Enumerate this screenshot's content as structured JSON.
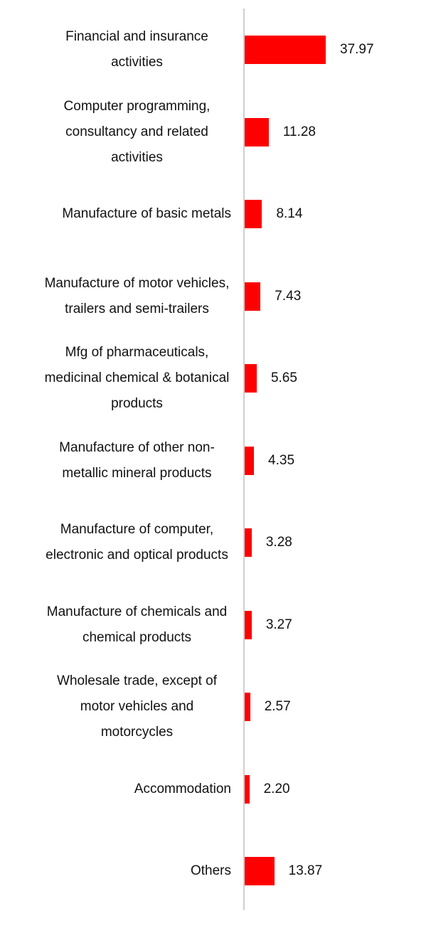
{
  "chart_data": {
    "type": "bar",
    "orientation": "horizontal",
    "color": "#ff0000",
    "categories": [
      "Financial and insurance activities",
      "Computer programming, consultancy and related activities",
      "Manufacture of basic metals",
      "Manufacture of motor vehicles, trailers and semi-trailers",
      "Mfg of pharmaceuticals, medicinal chemical & botanical products",
      "Manufacture of other non-metallic mineral products",
      "Manufacture of computer, electronic and optical products",
      "Manufacture of chemicals and chemical products",
      "Wholesale trade, except of motor vehicles and motorcycles",
      "Accommodation",
      "Others"
    ],
    "values": [
      37.97,
      11.28,
      8.14,
      7.43,
      5.65,
      4.35,
      3.28,
      3.27,
      2.57,
      2.2,
      13.87
    ],
    "value_labels": [
      "37.97",
      "11.28",
      "8.14",
      "7.43",
      "5.65",
      "4.35",
      "3.28",
      "3.27",
      "2.57",
      "2.20",
      "13.87"
    ]
  }
}
